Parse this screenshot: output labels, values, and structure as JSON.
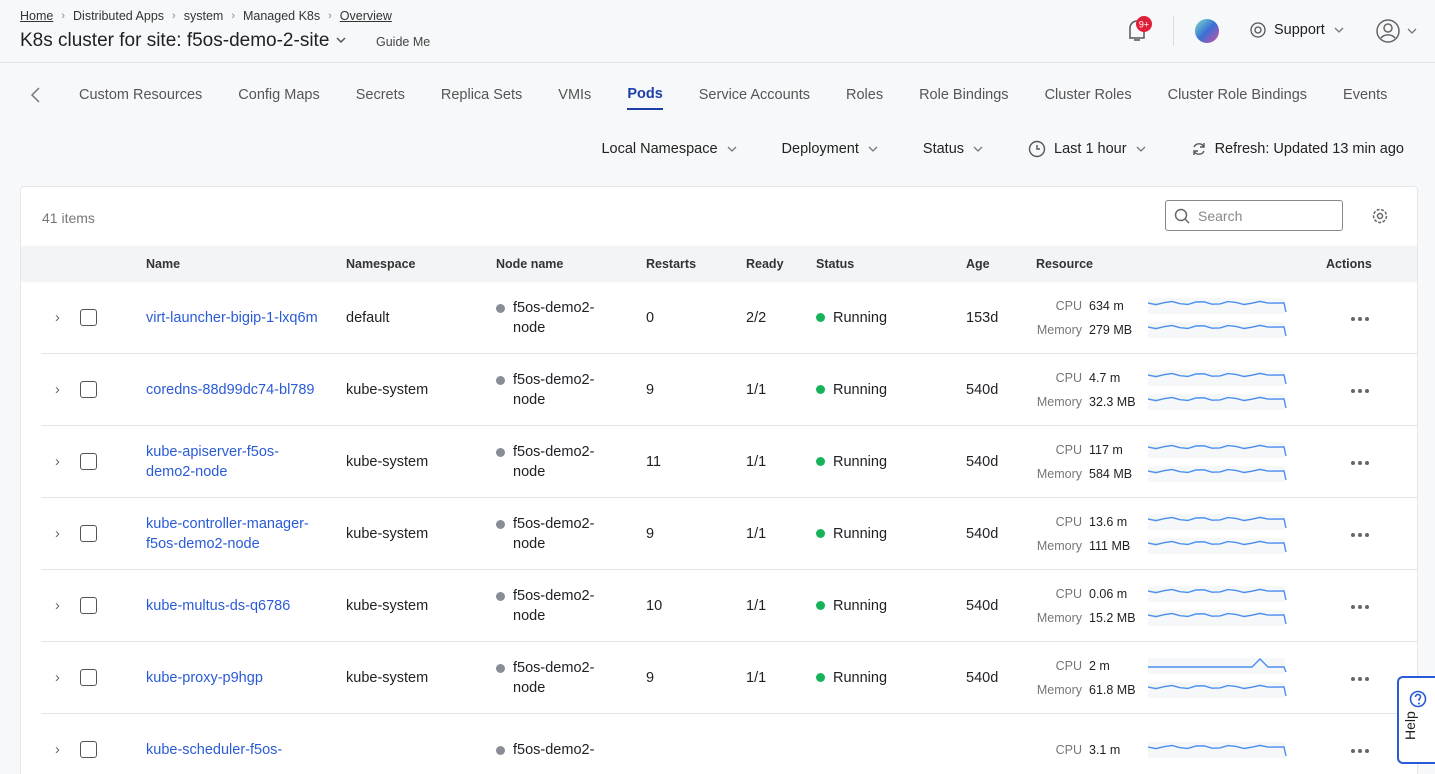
{
  "breadcrumb": [
    "Home",
    "Distributed Apps",
    "system",
    "Managed K8s",
    "Overview"
  ],
  "header": {
    "title": "K8s cluster for site: f5os-demo-2-site",
    "guide": "Guide Me",
    "notifications": "9+",
    "support": "Support"
  },
  "tabs": [
    {
      "label": "Custom Resources"
    },
    {
      "label": "Config Maps"
    },
    {
      "label": "Secrets"
    },
    {
      "label": "Replica Sets"
    },
    {
      "label": "VMIs"
    },
    {
      "label": "Pods",
      "active": true
    },
    {
      "label": "Service Accounts"
    },
    {
      "label": "Roles"
    },
    {
      "label": "Role Bindings"
    },
    {
      "label": "Cluster Roles"
    },
    {
      "label": "Cluster Role Bindings"
    },
    {
      "label": "Events"
    }
  ],
  "filters": [
    "Local Namespace",
    "Deployment",
    "Status",
    "Last 1 hour"
  ],
  "refresh": "Refresh: Updated 13 min ago",
  "table": {
    "count": "41 items",
    "search_placeholder": "Search",
    "columns": [
      "Name",
      "Namespace",
      "Node name",
      "Restarts",
      "Ready",
      "Status",
      "Age",
      "Resource",
      "Actions"
    ],
    "resource_labels": {
      "cpu": "CPU",
      "memory": "Memory"
    },
    "rows": [
      {
        "name": "virt-launcher-bigip-1-lxq6m",
        "namespace": "default",
        "node": "f5os-demo2-node",
        "restarts": 0,
        "ready": "2/2",
        "status": "Running",
        "age": "153d",
        "cpu": "634 m",
        "memory": "279 MB"
      },
      {
        "name": "coredns-88d99dc74-bl789",
        "namespace": "kube-system",
        "node": "f5os-demo2-node",
        "restarts": 9,
        "ready": "1/1",
        "status": "Running",
        "age": "540d",
        "cpu": "4.7 m",
        "memory": "32.3 MB"
      },
      {
        "name": "kube-apiserver-f5os-demo2-node",
        "namespace": "kube-system",
        "node": "f5os-demo2-node",
        "restarts": 11,
        "ready": "1/1",
        "status": "Running",
        "age": "540d",
        "cpu": "117 m",
        "memory": "584 MB"
      },
      {
        "name": "kube-controller-manager-f5os-demo2-node",
        "namespace": "kube-system",
        "node": "f5os-demo2-node",
        "restarts": 9,
        "ready": "1/1",
        "status": "Running",
        "age": "540d",
        "cpu": "13.6 m",
        "memory": "111 MB"
      },
      {
        "name": "kube-multus-ds-q6786",
        "namespace": "kube-system",
        "node": "f5os-demo2-node",
        "restarts": 10,
        "ready": "1/1",
        "status": "Running",
        "age": "540d",
        "cpu": "0.06 m",
        "memory": "15.2 MB"
      },
      {
        "name": "kube-proxy-p9hgp",
        "namespace": "kube-system",
        "node": "f5os-demo2-node",
        "restarts": 9,
        "ready": "1/1",
        "status": "Running",
        "age": "540d",
        "cpu": "2 m",
        "memory": "61.8 MB"
      },
      {
        "name": "kube-scheduler-f5os-",
        "node": "f5os-demo2-",
        "cpu": "3.1 m"
      }
    ]
  },
  "help": "Help"
}
